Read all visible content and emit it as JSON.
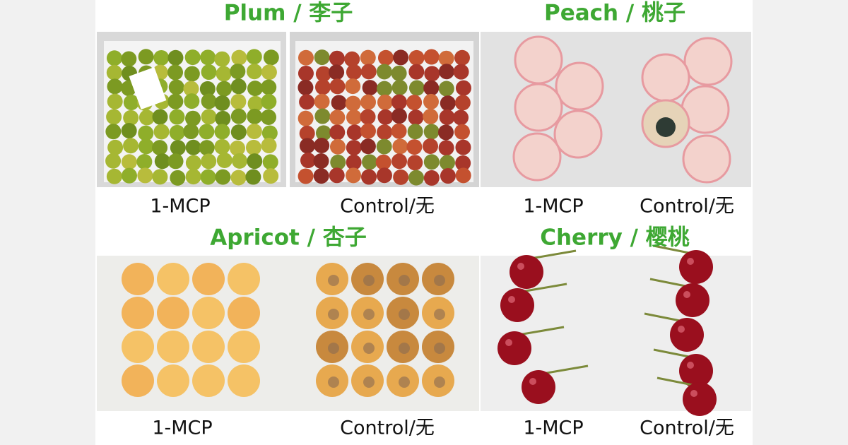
{
  "panels": [
    {
      "title": "Plum / 李子",
      "labels": [
        "1-MCP",
        "Control/无"
      ]
    },
    {
      "title": "Peach / 桃子",
      "labels": [
        "1-MCP",
        "Control/无"
      ]
    },
    {
      "title": "Apricot / 杏子",
      "labels": [
        "1-MCP",
        "Control/无"
      ]
    },
    {
      "title": "Cherry / 樱桃",
      "labels": [
        "1-MCP",
        "Control/无"
      ]
    }
  ]
}
